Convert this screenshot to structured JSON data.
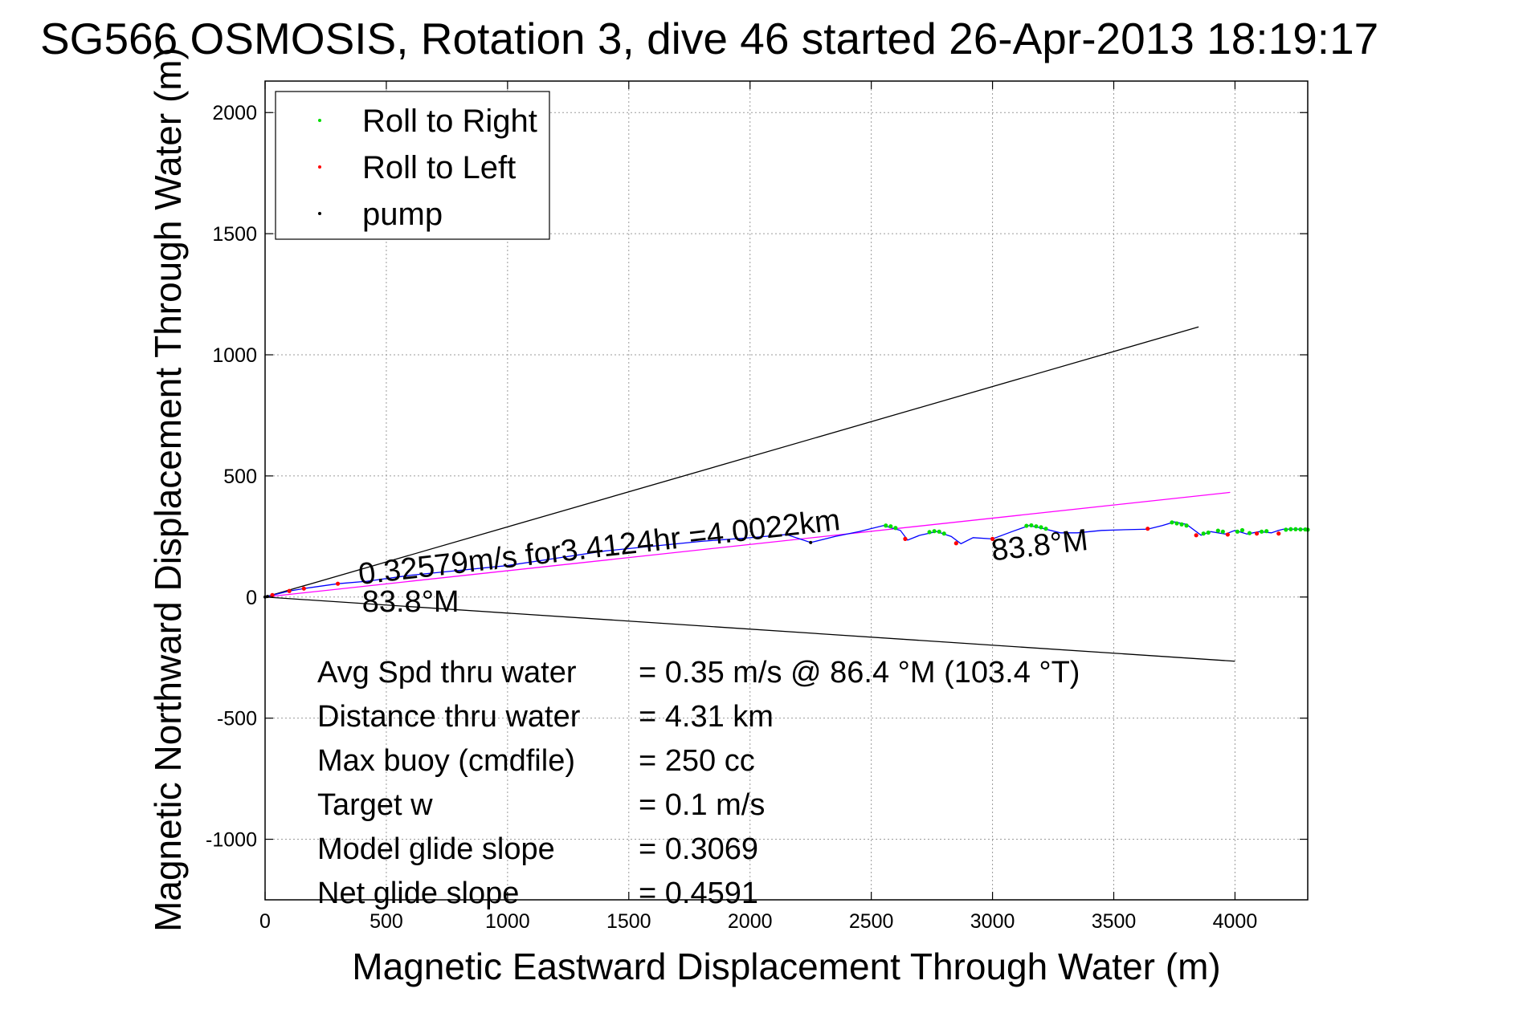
{
  "chart_data": {
    "type": "line",
    "title": "SG566 OSMOSIS, Rotation 3, dive 46 started 26-Apr-2013 18:19:17",
    "xlabel": "Magnetic Eastward Displacement Through Water (m)",
    "ylabel": "Magnetic Northward Displacement Through Water (m)",
    "xlim": [
      0,
      4300
    ],
    "ylim": [
      -1250,
      2130
    ],
    "xticks": [
      "0",
      "500",
      "1000",
      "1500",
      "2000",
      "2500",
      "3000",
      "3500",
      "4000"
    ],
    "xtick_values": [
      0,
      500,
      1000,
      1500,
      2000,
      2500,
      3000,
      3500,
      4000
    ],
    "yticks": [
      "2000",
      "1500",
      "1000",
      "500",
      "0",
      "-500",
      "-1000"
    ],
    "ytick_values": [
      2000,
      1500,
      1000,
      500,
      0,
      -500,
      -1000
    ],
    "grid": true,
    "legend_position": "top-left",
    "legend": [
      {
        "label": "Roll to Right",
        "color": "#00dd00"
      },
      {
        "label": "Roll to Left",
        "color": "#ff0000"
      },
      {
        "label": "pump",
        "color": "#000000"
      }
    ],
    "series": [
      {
        "name": "track",
        "color": "#0000ff",
        "x": [
          0,
          100,
          160,
          300,
          420,
          600,
          800,
          1000,
          1200,
          1400,
          1600,
          1800,
          2000,
          2150,
          2250,
          2350,
          2450,
          2550,
          2620,
          2650,
          2700,
          2770,
          2830,
          2870,
          2920,
          3000,
          3080,
          3150,
          3200,
          3280,
          3350,
          3450,
          3550,
          3640,
          3700,
          3750,
          3800,
          3860,
          3900,
          3960,
          4000,
          4050,
          4100,
          4150,
          4180,
          4200,
          4250,
          4300
        ],
        "y": [
          0,
          25,
          35,
          55,
          65,
          90,
          110,
          130,
          160,
          190,
          210,
          230,
          245,
          258,
          225,
          250,
          270,
          295,
          275,
          235,
          255,
          270,
          250,
          220,
          245,
          240,
          270,
          295,
          285,
          265,
          265,
          275,
          278,
          280,
          295,
          310,
          300,
          255,
          270,
          260,
          275,
          260,
          270,
          265,
          275,
          280,
          280,
          280
        ]
      },
      {
        "name": "Roll to Right",
        "color": "#00dd00",
        "x": [
          2560,
          2580,
          2600,
          2740,
          2760,
          2780,
          2800,
          3140,
          3160,
          3180,
          3200,
          3220,
          3740,
          3760,
          3780,
          3800,
          3870,
          3890,
          3930,
          3950,
          4010,
          4030,
          4060,
          4110,
          4130,
          4210,
          4230,
          4250,
          4270,
          4290,
          4300
        ],
        "y": [
          295,
          292,
          285,
          268,
          272,
          270,
          262,
          294,
          296,
          292,
          288,
          282,
          308,
          304,
          300,
          295,
          262,
          266,
          274,
          270,
          270,
          276,
          264,
          270,
          272,
          278,
          280,
          280,
          279,
          279,
          278
        ]
      },
      {
        "name": "Roll to Left",
        "color": "#ff0000",
        "x": [
          30,
          100,
          160,
          300,
          2640,
          2850,
          3000,
          3640,
          3840,
          3970,
          4090,
          4180
        ],
        "y": [
          8,
          25,
          35,
          55,
          240,
          222,
          240,
          282,
          255,
          258,
          262,
          262
        ]
      },
      {
        "name": "pump",
        "color": "#000000",
        "x": [
          0,
          10,
          2250
        ],
        "y": [
          0,
          2,
          225
        ]
      },
      {
        "name": "heading fan upper",
        "color": "#000000",
        "x": [
          0,
          3850
        ],
        "y": [
          0,
          1115
        ]
      },
      {
        "name": "heading fan lower",
        "color": "#000000",
        "x": [
          0,
          4000
        ],
        "y": [
          0,
          -265
        ]
      },
      {
        "name": "average heading",
        "color": "#ff00ff",
        "x": [
          0,
          3980
        ],
        "y": [
          0,
          432
        ]
      }
    ],
    "annotations": [
      {
        "text": "0.32579m/s for3.4124hr =4.0022km",
        "x": 390,
        "y": 52,
        "angle": -6.5
      },
      {
        "text": "83.8°M",
        "x": 400,
        "y": -60,
        "angle": 0
      },
      {
        "text": "83.8°M",
        "x": 3000,
        "y": 150,
        "angle": -6.5
      }
    ],
    "stats": [
      {
        "label": "Avg Spd thru water",
        "value": "=  0.35 m/s @  86.4 °M (103.4 °T)"
      },
      {
        "label": "Distance thru water",
        "value": "=  4.31 km"
      },
      {
        "label": "Max buoy (cmdfile)",
        "value": "= 250 cc"
      },
      {
        "label": "Target w",
        "value": "= 0.1 m/s"
      },
      {
        "label": "Model glide slope",
        "value": "= 0.3069"
      },
      {
        "label": "Net glide slope",
        "value": "= 0.4591"
      }
    ]
  }
}
